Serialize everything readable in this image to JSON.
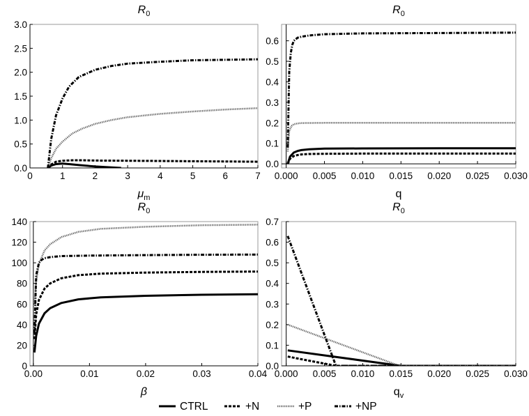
{
  "figure": {
    "type": "multi-panel line chart"
  },
  "legend": {
    "entries": [
      {
        "name": "CTRL",
        "style": "solid"
      },
      {
        "name": "+N",
        "style": "dashed"
      },
      {
        "name": "+P",
        "style": "dotted"
      },
      {
        "name": "+NP",
        "style": "dashdot"
      }
    ]
  },
  "chart_data": [
    {
      "type": "line",
      "title": "R0",
      "title_main": "R",
      "title_sub": "0",
      "xlabel": "μm",
      "xlabel_main": "μ",
      "xlabel_sub": "m",
      "xlabel_italic": true,
      "ylabel": "",
      "xlim": [
        0,
        7
      ],
      "ylim": [
        0,
        3.0
      ],
      "xticks": [
        0,
        1,
        2,
        3,
        4,
        5,
        6,
        7
      ],
      "xtick_labels": [
        "0",
        "1",
        "2",
        "3",
        "4",
        "5",
        "6",
        "7"
      ],
      "yticks": [
        0,
        0.5,
        1.0,
        1.5,
        2.0,
        2.5,
        3.0
      ],
      "ytick_labels": [
        "0.0",
        "0.5",
        "1.0",
        "1.5",
        "2.0",
        "2.5",
        "3.0"
      ],
      "series": [
        {
          "name": "CTRL",
          "style": "solid",
          "x": [
            0.55,
            0.65,
            0.8,
            1.0,
            1.2,
            1.5,
            2.0,
            2.5,
            2.8
          ],
          "y": [
            0.0,
            0.05,
            0.08,
            0.09,
            0.08,
            0.06,
            0.03,
            0.01,
            0.0
          ]
        },
        {
          "name": "+N",
          "style": "dashed",
          "x": [
            0.55,
            0.65,
            0.8,
            1.0,
            1.3,
            1.6,
            2.0,
            3.0,
            4.0,
            5.0,
            6.0,
            7.0
          ],
          "y": [
            0.0,
            0.07,
            0.13,
            0.15,
            0.16,
            0.16,
            0.155,
            0.15,
            0.145,
            0.14,
            0.135,
            0.13
          ]
        },
        {
          "name": "+P",
          "style": "dotted",
          "x": [
            0.55,
            0.65,
            0.8,
            1.0,
            1.3,
            1.6,
            2.0,
            2.5,
            3.0,
            4.0,
            5.0,
            6.0,
            7.0
          ],
          "y": [
            0.0,
            0.2,
            0.4,
            0.55,
            0.72,
            0.82,
            0.92,
            1.0,
            1.06,
            1.13,
            1.18,
            1.22,
            1.25
          ]
        },
        {
          "name": "+NP",
          "style": "dashdot",
          "x": [
            0.55,
            0.65,
            0.8,
            1.0,
            1.2,
            1.5,
            2.0,
            2.5,
            3.0,
            4.0,
            5.0,
            6.0,
            7.0
          ],
          "y": [
            0.0,
            0.6,
            1.1,
            1.45,
            1.7,
            1.9,
            2.05,
            2.13,
            2.18,
            2.22,
            2.25,
            2.26,
            2.27
          ]
        }
      ]
    },
    {
      "type": "line",
      "title": "R0",
      "title_main": "R",
      "title_sub": "0",
      "xlabel": "q",
      "xlabel_main": "q",
      "xlabel_sub": "",
      "xlabel_italic": false,
      "ylabel": "",
      "xlim": [
        -0.0006,
        0.03
      ],
      "ylim": [
        -0.02,
        0.68
      ],
      "xticks": [
        0,
        0.005,
        0.01,
        0.015,
        0.02,
        0.025,
        0.03
      ],
      "xtick_labels": [
        "0.000",
        "0.005",
        "0.010",
        "0.015",
        "0.020",
        "0.025",
        "0.030"
      ],
      "yticks": [
        0,
        0.1,
        0.2,
        0.3,
        0.4,
        0.5,
        0.6
      ],
      "ytick_labels": [
        "0.0",
        "0.1",
        "0.2",
        "0.3",
        "0.4",
        "0.5",
        "0.6"
      ],
      "series": [
        {
          "name": "CTRL",
          "style": "solid",
          "x": [
            0.0002,
            0.0005,
            0.001,
            0.0015,
            0.002,
            0.003,
            0.005,
            0.01,
            0.02,
            0.03
          ],
          "y": [
            0.0,
            0.035,
            0.055,
            0.063,
            0.067,
            0.071,
            0.074,
            0.075,
            0.076,
            0.076
          ]
        },
        {
          "name": "+N",
          "style": "dashed",
          "x": [
            0.0002,
            0.0005,
            0.001,
            0.0015,
            0.002,
            0.003,
            0.005,
            0.01,
            0.02,
            0.03
          ],
          "y": [
            0.0,
            0.025,
            0.038,
            0.043,
            0.046,
            0.048,
            0.049,
            0.05,
            0.05,
            0.05
          ]
        },
        {
          "name": "+P",
          "style": "dotted",
          "x": [
            0.0002,
            0.0004,
            0.0007,
            0.001,
            0.0015,
            0.002,
            0.005,
            0.01,
            0.02,
            0.03
          ],
          "y": [
            0.06,
            0.16,
            0.185,
            0.193,
            0.197,
            0.199,
            0.2,
            0.2,
            0.2,
            0.2
          ]
        },
        {
          "name": "+NP",
          "style": "dashdot",
          "x": [
            0.0002,
            0.0004,
            0.0006,
            0.0008,
            0.001,
            0.0015,
            0.002,
            0.003,
            0.005,
            0.01,
            0.02,
            0.03
          ],
          "y": [
            0.08,
            0.45,
            0.54,
            0.58,
            0.6,
            0.615,
            0.62,
            0.626,
            0.632,
            0.636,
            0.638,
            0.64
          ]
        }
      ]
    },
    {
      "type": "line",
      "title": "R0",
      "title_main": "R",
      "title_sub": "0",
      "xlabel": "β",
      "xlabel_main": "β",
      "xlabel_sub": "",
      "xlabel_italic": true,
      "ylabel": "",
      "xlim": [
        -0.0006,
        0.04
      ],
      "ylim": [
        0,
        140
      ],
      "xticks": [
        0,
        0.01,
        0.02,
        0.03,
        0.04
      ],
      "xtick_labels": [
        "0.00",
        "0.01",
        "0.02",
        "0.03",
        "0.04"
      ],
      "yticks": [
        0,
        20,
        40,
        60,
        80,
        100,
        120,
        140
      ],
      "ytick_labels": [
        "0",
        "20",
        "40",
        "60",
        "80",
        "100",
        "120",
        "140"
      ],
      "series": [
        {
          "name": "CTRL",
          "style": "solid",
          "x": [
            0.0002,
            0.0005,
            0.001,
            0.002,
            0.003,
            0.005,
            0.008,
            0.012,
            0.02,
            0.03,
            0.04
          ],
          "y": [
            13,
            29,
            41,
            51,
            56,
            61,
            64.5,
            66.5,
            68,
            69,
            69.5
          ]
        },
        {
          "name": "+N",
          "style": "dashed",
          "x": [
            0.0002,
            0.0005,
            0.001,
            0.002,
            0.003,
            0.005,
            0.008,
            0.012,
            0.02,
            0.03,
            0.04
          ],
          "y": [
            26,
            50,
            64,
            75,
            80,
            85,
            88,
            89.5,
            90.5,
            91.2,
            91.5
          ]
        },
        {
          "name": "+P",
          "style": "dotted",
          "x": [
            0.0002,
            0.0005,
            0.001,
            0.002,
            0.003,
            0.005,
            0.008,
            0.012,
            0.02,
            0.03,
            0.04
          ],
          "y": [
            60,
            82,
            99,
            112,
            118,
            125,
            130,
            133,
            135,
            136.5,
            137
          ]
        },
        {
          "name": "+NP",
          "style": "dashdot",
          "x": [
            0.0002,
            0.0005,
            0.001,
            0.0015,
            0.002,
            0.003,
            0.005,
            0.01,
            0.02,
            0.03,
            0.04
          ],
          "y": [
            32,
            88,
            100,
            103,
            104.5,
            105.5,
            106.5,
            107,
            107.5,
            107.8,
            108
          ]
        }
      ]
    },
    {
      "type": "line",
      "title": "R0",
      "title_main": "R",
      "title_sub": "0",
      "xlabel": "qv",
      "xlabel_main": "q",
      "xlabel_sub": "v",
      "xlabel_italic": false,
      "ylabel": "",
      "xlim": [
        -0.0006,
        0.03
      ],
      "ylim": [
        0,
        0.7
      ],
      "xticks": [
        0,
        0.005,
        0.01,
        0.015,
        0.02,
        0.025,
        0.03
      ],
      "xtick_labels": [
        "0.000",
        "0.005",
        "0.010",
        "0.015",
        "0.020",
        "0.025",
        "0.030"
      ],
      "yticks": [
        0,
        0.1,
        0.2,
        0.3,
        0.4,
        0.5,
        0.6,
        0.7
      ],
      "ytick_labels": [
        "0.0",
        "0.1",
        "0.2",
        "0.3",
        "0.4",
        "0.5",
        "0.6",
        "0.7"
      ],
      "series": [
        {
          "name": "CTRL",
          "style": "solid",
          "x": [
            0.0002,
            0.015,
            0.03
          ],
          "y": [
            0.075,
            0.0,
            0.0
          ]
        },
        {
          "name": "+N",
          "style": "dashed",
          "x": [
            0.0002,
            0.0065,
            0.03
          ],
          "y": [
            0.045,
            0.0,
            0.0
          ]
        },
        {
          "name": "+P",
          "style": "dotted",
          "x": [
            0.0002,
            0.0148,
            0.03
          ],
          "y": [
            0.2,
            0.0,
            0.0
          ]
        },
        {
          "name": "+NP",
          "style": "dashdot",
          "x": [
            0.0002,
            0.0065,
            0.03
          ],
          "y": [
            0.63,
            0.0,
            0.0
          ]
        }
      ]
    }
  ]
}
